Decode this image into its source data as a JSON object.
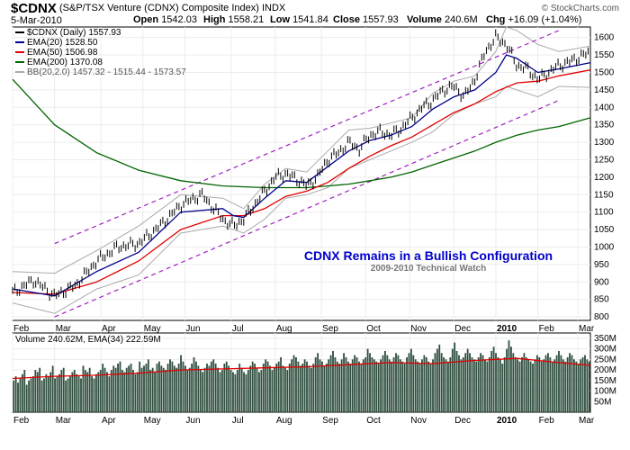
{
  "header": {
    "symbol": "$CDNX",
    "name": "(S&P/TSX Venture (CDNX) Composite Index) INDX",
    "watermark": "© StockCharts.com",
    "date": "5-Mar-2010",
    "open_label": "Open",
    "open": "1542.03",
    "high_label": "High",
    "high": "1558.21",
    "low_label": "Low",
    "low": "1541.84",
    "close_label": "Close",
    "close": "1557.93",
    "volume_label": "Volume",
    "volume": "240.6M",
    "chg_label": "Chg",
    "chg": "+16.09 (+1.04%)"
  },
  "colors": {
    "price": "#000000",
    "ema20": "#00008b",
    "ema50": "#e00000",
    "ema200": "#006400",
    "bb": "#aaaaaa",
    "channel": "#a020c0",
    "volume": "#2f4f3f",
    "annotation": "#0000cc"
  },
  "chart_data": [
    {
      "type": "line",
      "legend": [
        {
          "key": "price",
          "label": "$CDNX (Daily) 1557.93"
        },
        {
          "key": "ema20",
          "label": "EMA(20) 1528.50"
        },
        {
          "key": "ema50",
          "label": "EMA(50) 1506.98"
        },
        {
          "key": "ema200",
          "label": "EMA(200) 1370.08"
        },
        {
          "key": "bb",
          "label": "BB(20,2.0) 1457.32 - 1515.44 - 1573.57"
        }
      ],
      "y_ticks": [
        800,
        850,
        900,
        950,
        1000,
        1050,
        1100,
        1150,
        1200,
        1250,
        1300,
        1350,
        1400,
        1450,
        1500,
        1550,
        1600
      ],
      "ylim": [
        790,
        1630
      ],
      "x_labels": [
        {
          "label": "Feb",
          "x": 0
        },
        {
          "label": "Mar",
          "x": 20
        },
        {
          "label": "Apr",
          "x": 42
        },
        {
          "label": "May",
          "x": 62
        },
        {
          "label": "Jun",
          "x": 82
        },
        {
          "label": "Jul",
          "x": 104
        },
        {
          "label": "Aug",
          "x": 125
        },
        {
          "label": "Sep",
          "x": 147
        },
        {
          "label": "Oct",
          "x": 168
        },
        {
          "label": "Nov",
          "x": 189
        },
        {
          "label": "Dec",
          "x": 210
        },
        {
          "label": "2010",
          "x": 230
        },
        {
          "label": "Feb",
          "x": 250
        },
        {
          "label": "Mar",
          "x": 269
        }
      ],
      "xlim": [
        0,
        275
      ],
      "series": [
        {
          "key": "price",
          "x": [
            0,
            10,
            20,
            30,
            40,
            50,
            60,
            70,
            80,
            90,
            100,
            105,
            110,
            115,
            120,
            125,
            130,
            135,
            140,
            145,
            150,
            155,
            160,
            165,
            170,
            175,
            180,
            185,
            190,
            195,
            200,
            205,
            210,
            215,
            220,
            225,
            230,
            235,
            240,
            245,
            250,
            255,
            260,
            265,
            270,
            275
          ],
          "values": [
            870,
            905,
            860,
            890,
            960,
            1000,
            1010,
            1060,
            1120,
            1150,
            1080,
            1060,
            1080,
            1120,
            1160,
            1200,
            1210,
            1195,
            1175,
            1200,
            1250,
            1270,
            1300,
            1280,
            1320,
            1330,
            1320,
            1340,
            1370,
            1400,
            1420,
            1450,
            1460,
            1430,
            1480,
            1560,
            1600,
            1580,
            1520,
            1510,
            1480,
            1500,
            1520,
            1530,
            1545,
            1558
          ]
        },
        {
          "key": "ema20",
          "x": [
            0,
            20,
            40,
            60,
            80,
            100,
            105,
            110,
            120,
            130,
            140,
            150,
            160,
            170,
            180,
            190,
            200,
            210,
            220,
            230,
            235,
            240,
            250,
            260,
            275
          ],
          "values": [
            880,
            860,
            930,
            985,
            1100,
            1110,
            1090,
            1085,
            1140,
            1190,
            1185,
            1230,
            1275,
            1305,
            1320,
            1345,
            1395,
            1430,
            1450,
            1500,
            1550,
            1540,
            1500,
            1510,
            1528
          ]
        },
        {
          "key": "ema50",
          "x": [
            0,
            20,
            40,
            60,
            80,
            100,
            110,
            120,
            130,
            140,
            150,
            160,
            170,
            180,
            190,
            200,
            210,
            220,
            230,
            240,
            250,
            260,
            275
          ],
          "values": [
            870,
            865,
            900,
            960,
            1050,
            1090,
            1090,
            1110,
            1145,
            1160,
            1185,
            1225,
            1260,
            1290,
            1315,
            1350,
            1385,
            1410,
            1445,
            1470,
            1475,
            1490,
            1507
          ]
        },
        {
          "key": "ema200",
          "x": [
            0,
            20,
            40,
            60,
            80,
            100,
            120,
            130,
            140,
            150,
            160,
            170,
            180,
            190,
            200,
            210,
            220,
            230,
            240,
            250,
            260,
            275
          ],
          "values": [
            1480,
            1350,
            1270,
            1220,
            1190,
            1175,
            1170,
            1170,
            1170,
            1175,
            1180,
            1190,
            1200,
            1215,
            1235,
            1255,
            1275,
            1300,
            1320,
            1335,
            1345,
            1370
          ]
        },
        {
          "key": "bb_upper",
          "x": [
            0,
            20,
            40,
            60,
            80,
            100,
            110,
            120,
            130,
            140,
            150,
            160,
            170,
            180,
            190,
            200,
            210,
            220,
            230,
            235,
            240,
            250,
            260,
            275
          ],
          "values": [
            930,
            925,
            990,
            1060,
            1150,
            1140,
            1110,
            1180,
            1225,
            1215,
            1275,
            1335,
            1340,
            1355,
            1370,
            1440,
            1475,
            1490,
            1560,
            1630,
            1620,
            1580,
            1560,
            1575
          ]
        },
        {
          "key": "bb_lower",
          "x": [
            0,
            20,
            40,
            60,
            80,
            100,
            110,
            120,
            130,
            140,
            150,
            160,
            170,
            180,
            190,
            200,
            210,
            220,
            230,
            235,
            240,
            250,
            260,
            275
          ],
          "values": [
            840,
            810,
            880,
            920,
            1040,
            1060,
            1040,
            1080,
            1140,
            1150,
            1170,
            1225,
            1250,
            1275,
            1300,
            1330,
            1380,
            1410,
            1430,
            1460,
            1450,
            1430,
            1460,
            1457
          ]
        },
        {
          "key": "channel_top",
          "x": [
            20,
            260
          ],
          "values": [
            1010,
            1620
          ]
        },
        {
          "key": "channel_bottom",
          "x": [
            20,
            260
          ],
          "values": [
            800,
            1420
          ]
        }
      ],
      "annotation": {
        "title": "CDNX Remains in a Bullish Configuration",
        "subtitle": "2009-2010 Technical Watch"
      }
    },
    {
      "type": "bar",
      "legend_label": "Volume 240.62M, EMA(34) 222.59M",
      "y_ticks": [
        {
          "value": 50,
          "label": "50M"
        },
        {
          "value": 100,
          "label": "100M"
        },
        {
          "value": 150,
          "label": "150M"
        },
        {
          "value": 200,
          "label": "200M"
        },
        {
          "value": 250,
          "label": "250M"
        },
        {
          "value": 300,
          "label": "300M"
        },
        {
          "value": 350,
          "label": "350M"
        }
      ],
      "ylim": [
        0,
        375
      ],
      "values": [
        150,
        170,
        140,
        160,
        180,
        200,
        130,
        150,
        160,
        170,
        200,
        190,
        210,
        150,
        160,
        180,
        170,
        190,
        220,
        160,
        170,
        180,
        200,
        210,
        150,
        160,
        170,
        190,
        200,
        180,
        170,
        160,
        220,
        200,
        190,
        210,
        170,
        160,
        180,
        190,
        200,
        230,
        210,
        190,
        170,
        200,
        220,
        210,
        230,
        240,
        200,
        190,
        210,
        220,
        230,
        200,
        180,
        190,
        240,
        210,
        220,
        230,
        250,
        200,
        210,
        190,
        230,
        240,
        220,
        210,
        200,
        230,
        250,
        240,
        220,
        210,
        230,
        270,
        240,
        220,
        200,
        210,
        230,
        260,
        240,
        220,
        200,
        190,
        210,
        230,
        220,
        240,
        250,
        230,
        210,
        190,
        200,
        230,
        240,
        220,
        200,
        190,
        180,
        200,
        230,
        210,
        190,
        180,
        200,
        220,
        240,
        230,
        210,
        190,
        200,
        230,
        250,
        240,
        220,
        200,
        210,
        230,
        240,
        260,
        220,
        210,
        200,
        230,
        250,
        270,
        260,
        240,
        220,
        230,
        250,
        240,
        220,
        210,
        230,
        260,
        280,
        250,
        240,
        220,
        230,
        250,
        270,
        290,
        260,
        240,
        230,
        250,
        280,
        260,
        240,
        230,
        250,
        270,
        260,
        240,
        230,
        250,
        260,
        300,
        280,
        260,
        250,
        240,
        230,
        250,
        270,
        290,
        270,
        250,
        240,
        260,
        280,
        270,
        250,
        240,
        230,
        260,
        280,
        300,
        270,
        250,
        240,
        230,
        250,
        270,
        260,
        240,
        230,
        250,
        280,
        300,
        320,
        280,
        260,
        250,
        240,
        260,
        300,
        330,
        290,
        270,
        250,
        260,
        280,
        300,
        280,
        260,
        250,
        240,
        260,
        280,
        270,
        250,
        240,
        260,
        290,
        310,
        280,
        260,
        250,
        230,
        260,
        300,
        340,
        310,
        280,
        260,
        250,
        240,
        260,
        280,
        260,
        250,
        240,
        230,
        250,
        270,
        260,
        240,
        250,
        270,
        280,
        260,
        240,
        250,
        270,
        290,
        270,
        250,
        240,
        260,
        280,
        270,
        250,
        240,
        230,
        250,
        260,
        270,
        250,
        240
      ],
      "ema_x": [
        0,
        20,
        40,
        60,
        80,
        100,
        120,
        140,
        160,
        180,
        200,
        220,
        240,
        260,
        275
      ],
      "ema_values": [
        160,
        170,
        175,
        185,
        200,
        205,
        210,
        215,
        225,
        235,
        230,
        245,
        255,
        235,
        222
      ]
    }
  ],
  "x_axis_labels": [
    "Feb",
    "Mar",
    "Apr",
    "May",
    "Jun",
    "Jul",
    "Aug",
    "Sep",
    "Oct",
    "Nov",
    "Dec",
    "2010",
    "Feb",
    "Mar"
  ]
}
